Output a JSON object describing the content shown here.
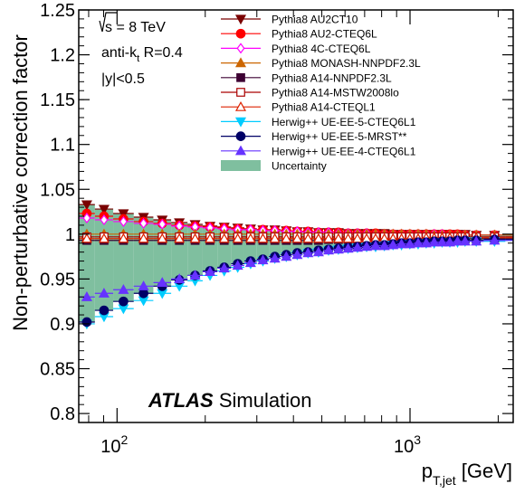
{
  "chart_data": {
    "type": "line",
    "xlabel": "p",
    "xlabel_sub": "T,jet",
    "xlabel_unit": " [GeV]",
    "ylabel": "Non-perturbative correction factor",
    "x_scale": "log",
    "xlim": [
      74,
      2250
    ],
    "ylim": [
      0.79,
      1.25
    ],
    "x_ticks_major": [
      {
        "value": 100,
        "base": "10",
        "exp": "2"
      },
      {
        "value": 1000,
        "base": "10",
        "exp": "3"
      }
    ],
    "y_ticks": [
      {
        "value": 0.8,
        "label": "0.8"
      },
      {
        "value": 0.85,
        "label": "0.85"
      },
      {
        "value": 0.9,
        "label": "0.9"
      },
      {
        "value": 0.95,
        "label": "0.95"
      },
      {
        "value": 1.0,
        "label": "1"
      },
      {
        "value": 1.05,
        "label": "1.05"
      },
      {
        "value": 1.1,
        "label": "1.1"
      },
      {
        "value": 1.15,
        "label": "1.15"
      },
      {
        "value": 1.2,
        "label": "1.2"
      },
      {
        "value": 1.25,
        "label": "1.25"
      }
    ],
    "bin_edges": [
      74,
      84,
      97,
      114,
      133,
      153,
      174,
      196,
      220,
      245,
      272,
      300,
      330,
      362,
      395,
      430,
      468,
      507,
      548,
      592,
      638,
      686,
      737,
      790,
      846,
      905,
      967,
      1032,
      1101,
      1172,
      1248,
      1327,
      1410,
      1497,
      1588,
      1784,
      2116,
      2500
    ],
    "annotations": {
      "energy_prefix": "s",
      "energy_value": " = 8 TeV",
      "algo_prefix": "anti-k",
      "algo_sub": "t",
      "algo_suffix": " R=0.4",
      "rapidity": "|y|<0.5",
      "atlas": "ATLAS",
      "simulation": " Simulation"
    },
    "uncertainty": {
      "name": "Uncertainty",
      "color": "#7fbf9f",
      "upper": [
        1.033,
        1.028,
        1.023,
        1.019,
        1.016,
        1.013,
        1.011,
        1.009,
        1.008,
        1.007,
        1.006,
        1.005,
        1.005,
        1.004,
        1.003,
        1.003,
        1.002,
        1.002,
        1.002,
        1.001,
        1.001,
        1.001,
        1.001,
        1.001,
        1.0,
        1.0,
        1.0,
        1.0,
        1.0,
        1.0,
        1.0,
        1.0,
        1.0,
        1.0,
        0.999,
        0.999,
        0.999
      ],
      "lower": [
        0.902,
        0.915,
        0.925,
        0.934,
        0.942,
        0.949,
        0.954,
        0.959,
        0.963,
        0.967,
        0.97,
        0.972,
        0.975,
        0.977,
        0.979,
        0.98,
        0.982,
        0.983,
        0.984,
        0.985,
        0.986,
        0.987,
        0.988,
        0.988,
        0.989,
        0.99,
        0.99,
        0.991,
        0.991,
        0.992,
        0.992,
        0.992,
        0.993,
        0.993,
        0.993,
        0.994,
        0.994
      ]
    },
    "series": [
      {
        "name": "Pythia8 AU2CT10",
        "color": "#7a0000",
        "marker": "triangle-down",
        "filled": true,
        "values": [
          1.033,
          1.028,
          1.023,
          1.019,
          1.016,
          1.013,
          1.011,
          1.009,
          1.008,
          1.007,
          1.006,
          1.005,
          1.005,
          1.004,
          1.003,
          1.003,
          1.002,
          1.002,
          1.002,
          1.001,
          1.001,
          1.001,
          1.001,
          1.001,
          1.0,
          1.0,
          1.0,
          1.0,
          1.0,
          1.0,
          1.0,
          1.0,
          1.0,
          1.0,
          0.999,
          0.999,
          0.999
        ]
      },
      {
        "name": "Pythia8 AU2-CTEQ6L",
        "color": "#ff0000",
        "marker": "circle",
        "filled": true,
        "values": [
          1.023,
          1.02,
          1.017,
          1.014,
          1.012,
          1.01,
          1.009,
          1.008,
          1.007,
          1.006,
          1.005,
          1.005,
          1.004,
          1.004,
          1.003,
          1.003,
          1.002,
          1.002,
          1.002,
          1.001,
          1.001,
          1.001,
          1.001,
          1.0,
          1.0,
          1.0,
          1.0,
          1.0,
          1.0,
          1.0,
          1.0,
          1.0,
          1.0,
          0.999,
          0.999,
          0.999,
          0.999
        ]
      },
      {
        "name": "Pythia8 4C-CTEQ6L",
        "color": "#ff00ff",
        "marker": "diamond",
        "filled": false,
        "values": [
          1.018,
          1.016,
          1.014,
          1.012,
          1.011,
          1.009,
          1.008,
          1.007,
          1.006,
          1.005,
          1.005,
          1.004,
          1.004,
          1.003,
          1.003,
          1.002,
          1.002,
          1.002,
          1.001,
          1.001,
          1.001,
          1.001,
          1.0,
          1.0,
          1.0,
          1.0,
          1.0,
          1.0,
          1.0,
          1.0,
          1.0,
          0.999,
          0.999,
          0.999,
          0.999,
          0.999,
          0.999
        ]
      },
      {
        "name": "Pythia8 MONASH-NNPDF2.3L",
        "color": "#cc6600",
        "marker": "triangle-up",
        "filled": true,
        "values": [
          1.0,
          1.0,
          1.0,
          1.0,
          1.0,
          1.0,
          1.0,
          1.0,
          1.0,
          1.0,
          1.0,
          1.0,
          1.0,
          1.0,
          1.0,
          1.0,
          1.0,
          1.0,
          1.0,
          1.0,
          1.0,
          1.0,
          1.0,
          1.0,
          1.0,
          1.0,
          1.0,
          1.0,
          1.0,
          0.999,
          0.999,
          0.999,
          0.999,
          0.999,
          0.999,
          0.999,
          0.999
        ]
      },
      {
        "name": "Pythia8 A14-NNPDF2.3L",
        "color": "#3d0033",
        "marker": "square",
        "filled": true,
        "values": [
          0.993,
          0.993,
          0.993,
          0.993,
          0.993,
          0.993,
          0.993,
          0.993,
          0.993,
          0.993,
          0.993,
          0.993,
          0.993,
          0.993,
          0.993,
          0.993,
          0.993,
          0.994,
          0.994,
          0.994,
          0.994,
          0.994,
          0.994,
          0.994,
          0.994,
          0.994,
          0.994,
          0.994,
          0.994,
          0.995,
          0.995,
          0.995,
          0.995,
          0.995,
          0.995,
          0.995,
          0.995
        ]
      },
      {
        "name": "Pythia8 A14-MSTW2008lo",
        "color": "#aa0000",
        "marker": "square",
        "filled": false,
        "values": [
          0.997,
          0.997,
          0.997,
          0.997,
          0.997,
          0.997,
          0.997,
          0.997,
          0.997,
          0.997,
          0.997,
          0.997,
          0.997,
          0.997,
          0.997,
          0.997,
          0.997,
          0.997,
          0.997,
          0.997,
          0.997,
          0.997,
          0.997,
          0.997,
          0.997,
          0.997,
          0.997,
          0.997,
          0.997,
          0.997,
          0.997,
          0.997,
          0.997,
          0.997,
          0.997,
          0.997,
          0.997
        ]
      },
      {
        "name": "Pythia8 A14-CTEQL1",
        "color": "#dd2200",
        "marker": "triangle-up",
        "filled": false,
        "values": [
          0.995,
          0.995,
          0.995,
          0.995,
          0.995,
          0.995,
          0.995,
          0.995,
          0.995,
          0.995,
          0.995,
          0.995,
          0.995,
          0.995,
          0.995,
          0.995,
          0.995,
          0.995,
          0.995,
          0.995,
          0.995,
          0.995,
          0.995,
          0.995,
          0.995,
          0.995,
          0.995,
          0.995,
          0.996,
          0.996,
          0.996,
          0.996,
          0.996,
          0.996,
          0.996,
          0.996,
          0.996
        ]
      },
      {
        "name": "Herwig++ UE-EE-5-CTEQ6L1",
        "color": "#00ccff",
        "marker": "triangle-down",
        "filled": true,
        "values": [
          0.9,
          0.908,
          0.917,
          0.926,
          0.934,
          0.942,
          0.948,
          0.954,
          0.959,
          0.963,
          0.967,
          0.97,
          0.973,
          0.975,
          0.977,
          0.979,
          0.98,
          0.982,
          0.983,
          0.984,
          0.985,
          0.986,
          0.986,
          0.987,
          0.988,
          0.988,
          0.989,
          0.989,
          0.99,
          0.99,
          0.991,
          0.991,
          0.991,
          0.992,
          0.992,
          0.992,
          0.993
        ]
      },
      {
        "name": "Herwig++ UE-EE-5-MRST**",
        "color": "#000066",
        "marker": "circle",
        "filled": true,
        "values": [
          0.902,
          0.915,
          0.925,
          0.934,
          0.942,
          0.949,
          0.954,
          0.959,
          0.963,
          0.967,
          0.97,
          0.972,
          0.975,
          0.977,
          0.979,
          0.98,
          0.982,
          0.983,
          0.984,
          0.985,
          0.986,
          0.987,
          0.988,
          0.988,
          0.989,
          0.99,
          0.99,
          0.991,
          0.991,
          0.992,
          0.992,
          0.992,
          0.993,
          0.993,
          0.993,
          0.994,
          0.994
        ]
      },
      {
        "name": "Herwig++ UE-EE-4-CTEQ6L1",
        "color": "#6633ff",
        "marker": "triangle-up",
        "filled": true,
        "values": [
          0.93,
          0.934,
          0.938,
          0.942,
          0.946,
          0.95,
          0.954,
          0.958,
          0.962,
          0.965,
          0.968,
          0.971,
          0.973,
          0.975,
          0.977,
          0.979,
          0.98,
          0.982,
          0.983,
          0.984,
          0.985,
          0.986,
          0.987,
          0.987,
          0.988,
          0.989,
          0.989,
          0.99,
          0.99,
          0.991,
          0.991,
          0.991,
          0.992,
          0.992,
          0.992,
          0.993,
          0.993
        ]
      }
    ]
  }
}
